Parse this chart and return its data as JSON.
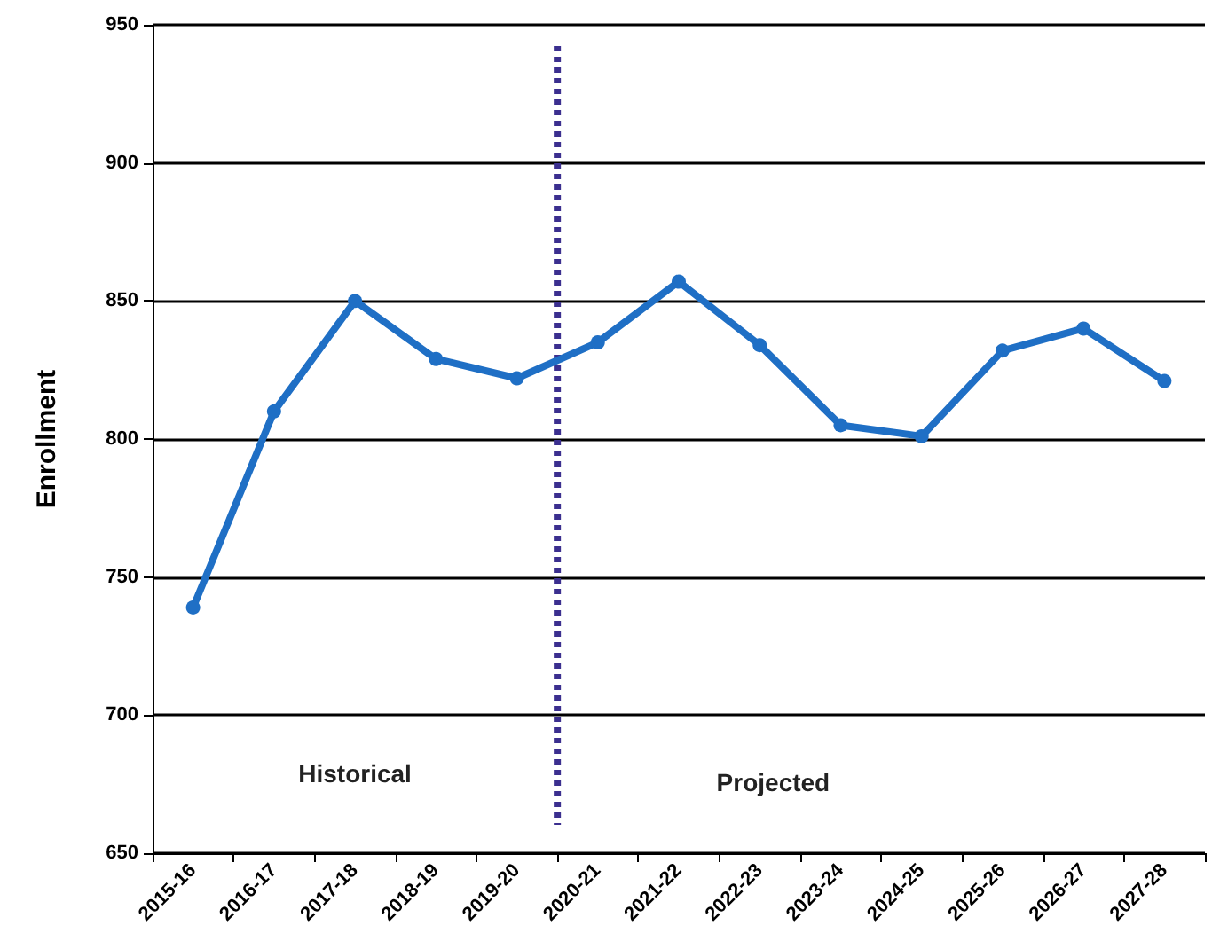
{
  "chart_data": {
    "type": "line",
    "ylabel": "Enrollment",
    "categories": [
      "2015-16",
      "2016-17",
      "2017-18",
      "2018-19",
      "2019-20",
      "2020-21",
      "2021-22",
      "2022-23",
      "2023-24",
      "2024-25",
      "2025-26",
      "2026-27",
      "2027-28"
    ],
    "series": [
      {
        "color": "#1f6fc5",
        "values": [
          739,
          810,
          850,
          829,
          822,
          835,
          857,
          834,
          805,
          801,
          832,
          840,
          821
        ]
      }
    ],
    "ylim": [
      650,
      950
    ],
    "yticks": [
      650,
      700,
      750,
      800,
      850,
      900,
      950
    ],
    "grid": "y",
    "marker": "circle",
    "line_style": "solid",
    "ref_lines": [
      {
        "axis": "x",
        "value": "2020-21",
        "color": "#3b2f8f",
        "line_style": "dotted"
      }
    ],
    "annotations": [
      "Historical",
      "Projected"
    ]
  }
}
